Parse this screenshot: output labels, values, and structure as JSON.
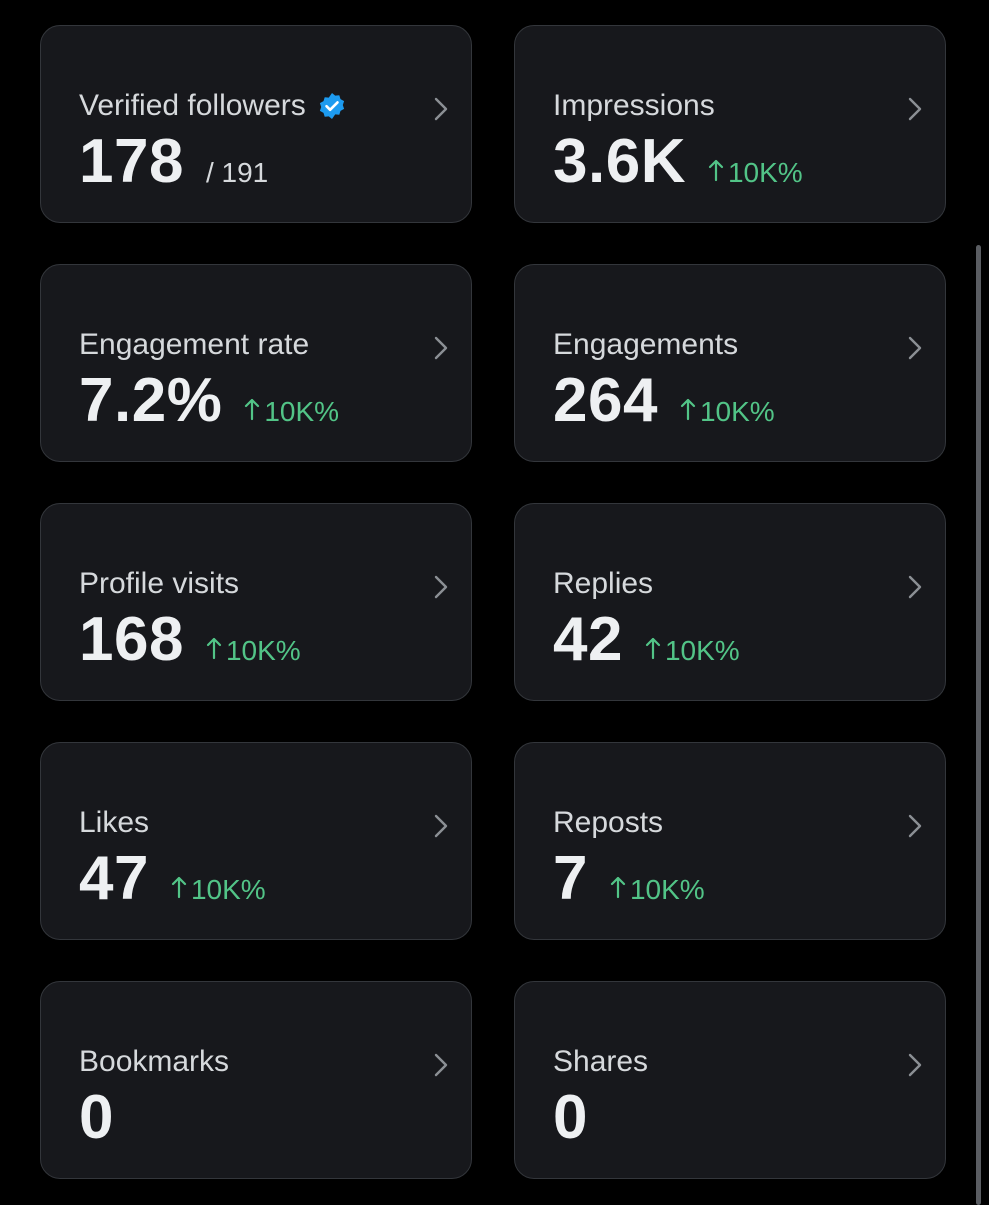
{
  "cards": [
    {
      "label": "Verified followers",
      "value": "178",
      "total": "/ 191"
    },
    {
      "label": "Impressions",
      "value": "3.6K",
      "change": "10K%"
    },
    {
      "label": "Engagement rate",
      "value": "7.2%",
      "change": "10K%"
    },
    {
      "label": "Engagements",
      "value": "264",
      "change": "10K%"
    },
    {
      "label": "Profile visits",
      "value": "168",
      "change": "10K%"
    },
    {
      "label": "Replies",
      "value": "42",
      "change": "10K%"
    },
    {
      "label": "Likes",
      "value": "47",
      "change": "10K%"
    },
    {
      "label": "Reposts",
      "value": "7",
      "change": "10K%"
    },
    {
      "label": "Bookmarks",
      "value": "0"
    },
    {
      "label": "Shares",
      "value": "0"
    }
  ]
}
